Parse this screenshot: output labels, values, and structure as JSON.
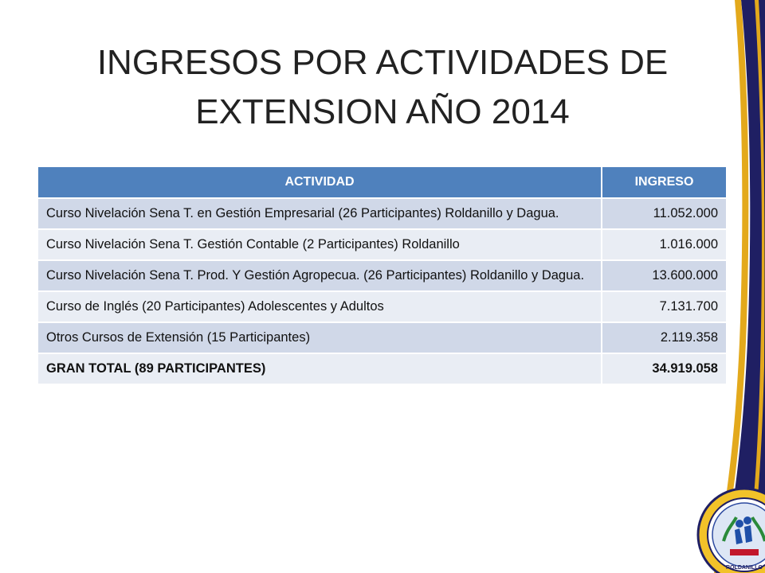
{
  "slide": {
    "title_line1": "INGRESOS POR ACTIVIDADES DE",
    "title_line2": "EXTENSION AÑO 2014"
  },
  "table": {
    "headers": [
      "ACTIVIDAD",
      "INGRESO"
    ],
    "rows": [
      {
        "actividad": "Curso Nivelación Sena T. en Gestión Empresarial (26 Participantes) Roldanillo y Dagua.",
        "ingreso": "11.052.000"
      },
      {
        "actividad": "Curso Nivelación Sena T. Gestión Contable (2 Participantes) Roldanillo",
        "ingreso": "1.016.000"
      },
      {
        "actividad": "Curso Nivelación Sena T. Prod. Y Gestión Agropecua. (26 Participantes) Roldanillo y Dagua.",
        "ingreso": "13.600.000"
      },
      {
        "actividad": "Curso de Inglés (20 Participantes) Adolescentes y Adultos",
        "ingreso": "7.131.700"
      },
      {
        "actividad": "Otros Cursos de Extensión (15 Participantes)",
        "ingreso": "2.119.358"
      }
    ],
    "total": {
      "actividad": "GRAN TOTAL (89 PARTICIPANTES)",
      "ingreso": "34.919.058"
    }
  },
  "decoration": {
    "bar_navy": "#1f1f63",
    "bar_gold": "#e3a91c",
    "header_blue": "#4f81bd",
    "seal_text": "INSTITUTO DE EDUCACIÓN TÉCNICA PROFESIONAL ROLDANILLO"
  }
}
